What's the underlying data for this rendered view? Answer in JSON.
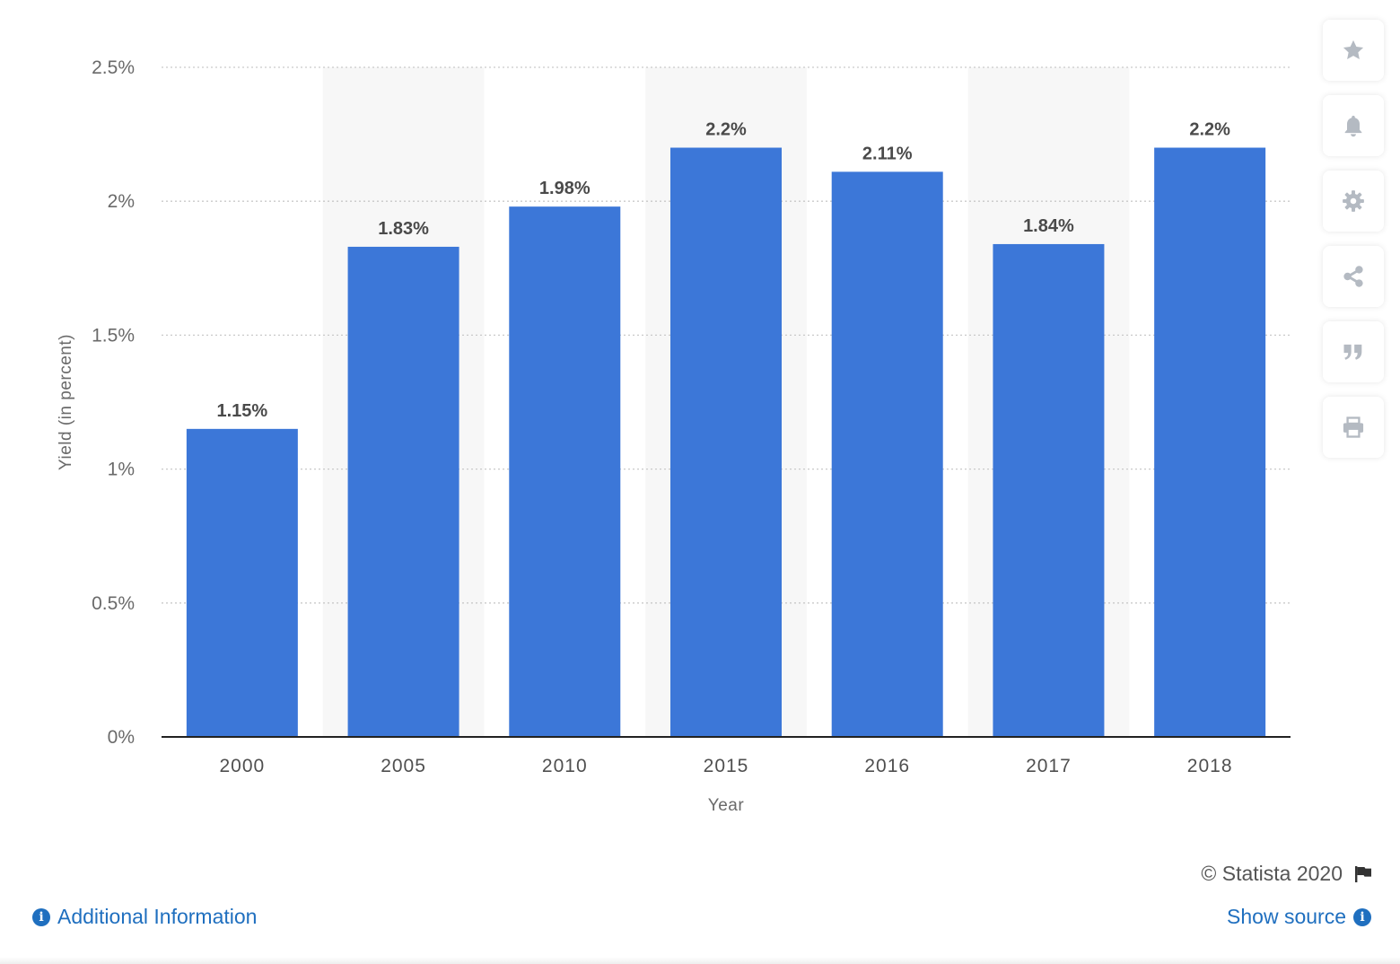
{
  "chart_data": {
    "type": "bar",
    "categories": [
      "2000",
      "2005",
      "2010",
      "2015",
      "2016",
      "2017",
      "2018"
    ],
    "values": [
      1.15,
      1.83,
      1.98,
      2.2,
      2.11,
      1.84,
      2.2
    ],
    "value_labels": [
      "1.15%",
      "1.83%",
      "1.98%",
      "2.2%",
      "2.11%",
      "1.84%",
      "2.2%"
    ],
    "xlabel": "Year",
    "ylabel": "Yield (in percent)",
    "ylim": [
      0,
      2.5
    ],
    "yticks": [
      0,
      0.5,
      1,
      1.5,
      2,
      2.5
    ],
    "ytick_labels": [
      "0%",
      "0.5%",
      "1%",
      "1.5%",
      "2%",
      "2.5%"
    ],
    "grid": "dotted-horizontal",
    "bar_color": "#3c77d8",
    "alt_band_color": "#f7f7f7"
  },
  "toolbar": {
    "items": [
      {
        "name": "favorite",
        "icon": "star-icon"
      },
      {
        "name": "notification",
        "icon": "bell-icon"
      },
      {
        "name": "settings",
        "icon": "gear-icon"
      },
      {
        "name": "share",
        "icon": "share-icon"
      },
      {
        "name": "cite",
        "icon": "quote-icon"
      },
      {
        "name": "print",
        "icon": "print-icon"
      }
    ],
    "icon_color": "#b4bac2"
  },
  "footer": {
    "copyright": "© Statista 2020",
    "additional_info": "Additional Information",
    "show_source": "Show source",
    "link_color": "#1f6fbf"
  }
}
